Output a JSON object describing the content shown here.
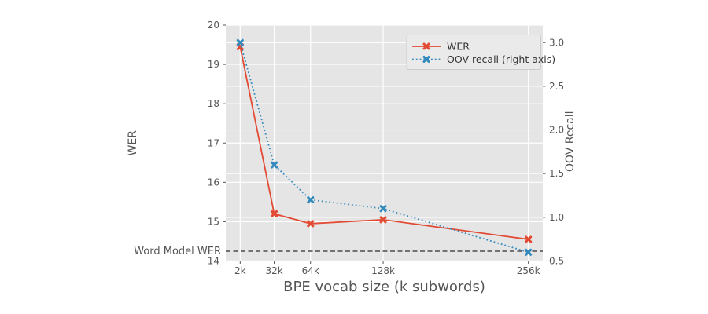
{
  "theme": {
    "background": "#ffffff",
    "plot_bg": "#e5e5e5",
    "grid_color": "#ffffff",
    "text_color": "#555555",
    "tick_color": "#555555",
    "legend_bg": "#eaeaea",
    "legend_border": "#cccccc",
    "legend_text": "#333333"
  },
  "chart_data": {
    "type": "line",
    "title": "",
    "xlabel": "BPE vocab size (k subwords)",
    "ylabel_left": "WER",
    "ylabel_right": "OOV Recall",
    "x": [
      2,
      32,
      64,
      128,
      256
    ],
    "x_tick_labels": [
      "2k",
      "32k",
      "64k",
      "128k",
      "256k"
    ],
    "xlim": [
      -10.7,
      268.7
    ],
    "ylim_left": [
      14,
      20
    ],
    "ylim_right": [
      0.5,
      3.2
    ],
    "yticks_left": [
      14,
      15,
      16,
      17,
      18,
      19,
      20
    ],
    "yticks_right": [
      0.5,
      1.0,
      1.5,
      2.0,
      2.5,
      3.0
    ],
    "grid": true,
    "legend_position": "upper right",
    "series": [
      {
        "name": "WER",
        "axis": "left",
        "color": "#e24a33",
        "line_style": "solid",
        "marker": "X",
        "values": [
          19.45,
          15.2,
          14.95,
          15.05,
          14.55
        ]
      },
      {
        "name": "OOV recall (right axis)",
        "axis": "right",
        "color": "#348abd",
        "line_style": "dotted",
        "marker": "X",
        "values": [
          3.0,
          1.6,
          1.2,
          1.1,
          0.6
        ]
      }
    ],
    "reference_line": {
      "label": "Word Model WER",
      "value": 14.25,
      "axis": "left",
      "style": "dashed",
      "color": "#4d4d4d"
    }
  }
}
